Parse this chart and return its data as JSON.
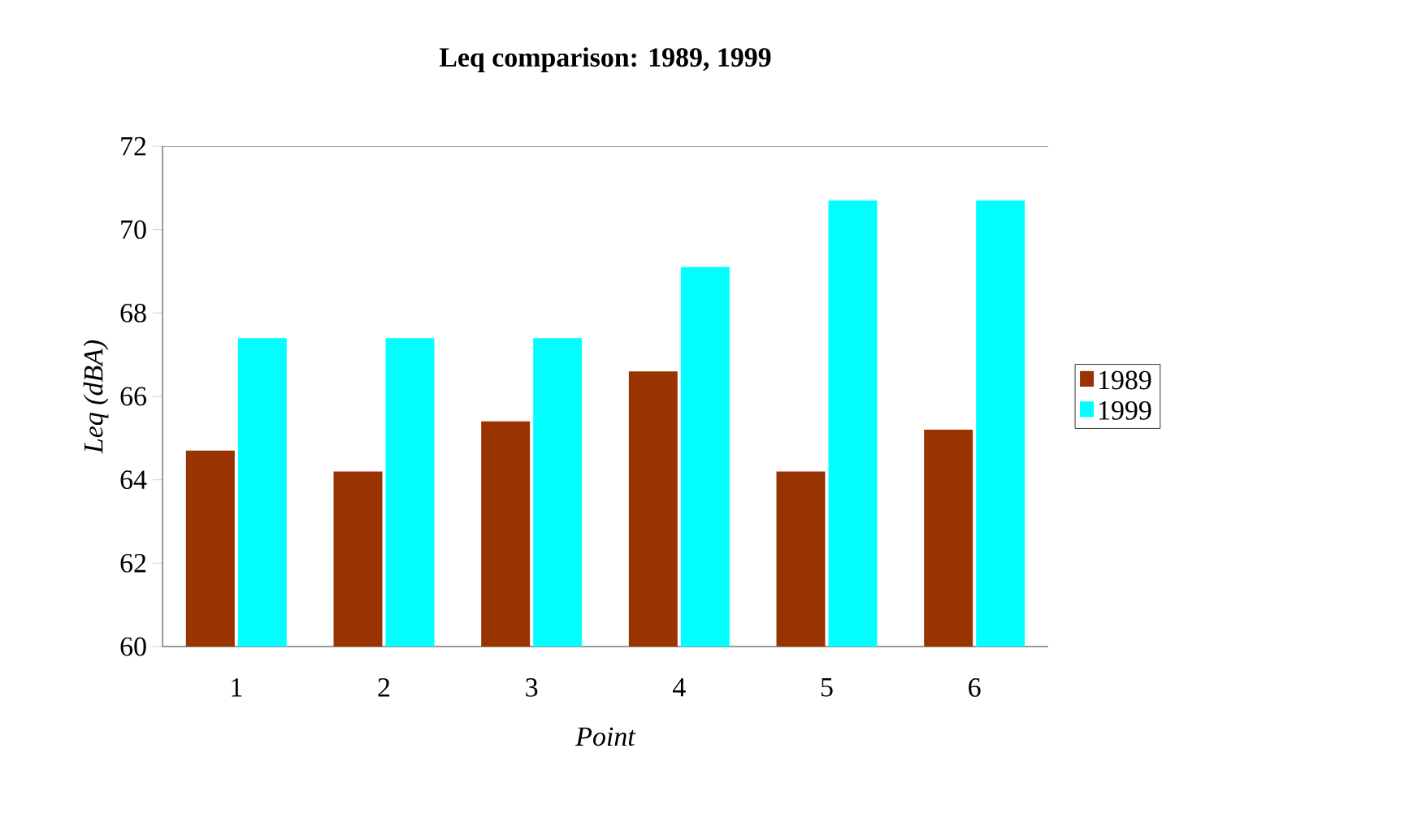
{
  "chart_data": {
    "type": "bar",
    "title": "Leq comparison: 1989, 1999",
    "xlabel": "Point",
    "ylabel": "Leq (dBA)",
    "categories": [
      "1",
      "2",
      "3",
      "4",
      "5",
      "6"
    ],
    "series": [
      {
        "name": "1989",
        "color": "#993300",
        "values": [
          64.7,
          64.2,
          65.4,
          66.6,
          64.2,
          65.2
        ]
      },
      {
        "name": "1999",
        "color": "#00ffff",
        "values": [
          67.4,
          67.4,
          67.4,
          69.1,
          70.7,
          70.7
        ]
      }
    ],
    "ylim": [
      60,
      72
    ],
    "yticks": [
      60,
      62,
      64,
      66,
      68,
      70,
      72
    ],
    "legend": "right",
    "grid": false
  }
}
